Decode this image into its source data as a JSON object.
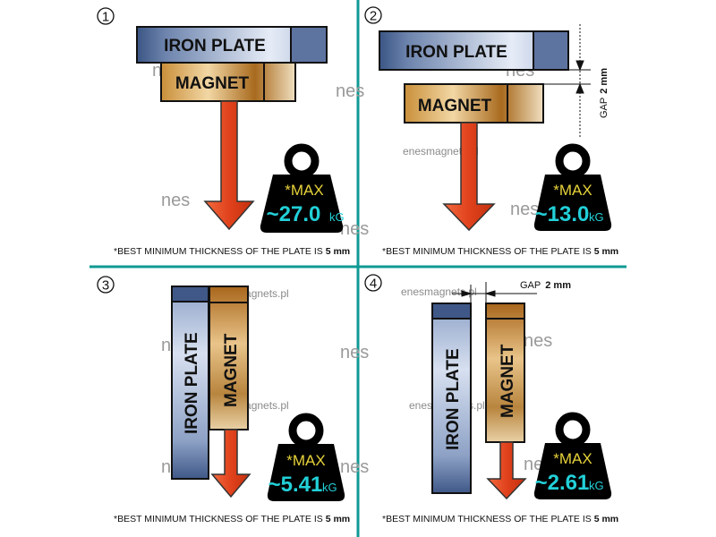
{
  "colors": {
    "divider": "#0f9a94",
    "arrow": "#e0421c",
    "weight": "#000000",
    "max_text": "#e6d23a",
    "value_text": "#22d0d8"
  },
  "watermark": "enesmagnets.pl",
  "logo": "nes",
  "panels": [
    {
      "number": "1",
      "iron": "IRON PLATE",
      "magnet": "MAGNET",
      "max": "*MAX",
      "value": "~27.0",
      "unit": "kG",
      "note": "*BEST MINIMUM THICKNESS OF THE PLATE IS ",
      "note_bold": "5 mm"
    },
    {
      "number": "2",
      "iron": "IRON PLATE",
      "magnet": "MAGNET",
      "max": "*MAX",
      "value": "~13.0",
      "unit": "kG",
      "gap": "GAP",
      "gap_value": "2 mm",
      "note": "*BEST MINIMUM THICKNESS OF THE PLATE IS ",
      "note_bold": "5 mm"
    },
    {
      "number": "3",
      "iron": "IRON  PLATE",
      "magnet": "MAGNET",
      "max": "*MAX",
      "value": "~5.41",
      "unit": "kG",
      "note": "*BEST MINIMUM THICKNESS OF THE PLATE IS ",
      "note_bold": "5 mm"
    },
    {
      "number": "4",
      "iron": "IRON PLATE",
      "magnet": "MAGNET",
      "max": "*MAX",
      "value": "~2.61",
      "unit": "kG",
      "gap": "GAP",
      "gap_value": "2 mm",
      "note": "*BEST MINIMUM THICKNESS OF THE PLATE IS ",
      "note_bold": "5 mm"
    }
  ]
}
